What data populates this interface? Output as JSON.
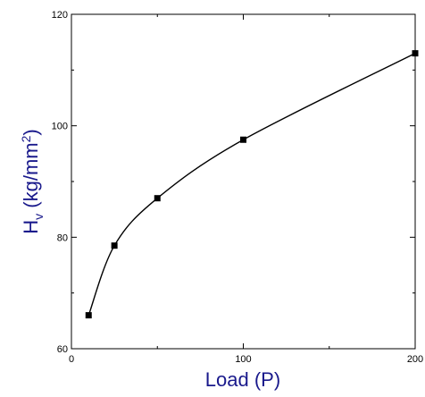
{
  "chart_data": {
    "type": "scatter",
    "xlabel": "Load (P)",
    "ylabel": {
      "main": "H",
      "subscript": "v",
      "unit_open": " (kg/mm",
      "unit_sup": "2",
      "unit_close": ")"
    },
    "xlim": [
      0,
      200
    ],
    "ylim": [
      60,
      120
    ],
    "xticks": [
      0,
      100,
      200
    ],
    "yticks": [
      60,
      80,
      100,
      120
    ],
    "grid": false,
    "label_color": "#1a1a8c",
    "series": [
      {
        "x": [
          10,
          25,
          50,
          100,
          200
        ],
        "y": [
          66,
          78.5,
          87,
          97.5,
          113
        ],
        "marker": "square",
        "fit_curve": true
      }
    ]
  }
}
